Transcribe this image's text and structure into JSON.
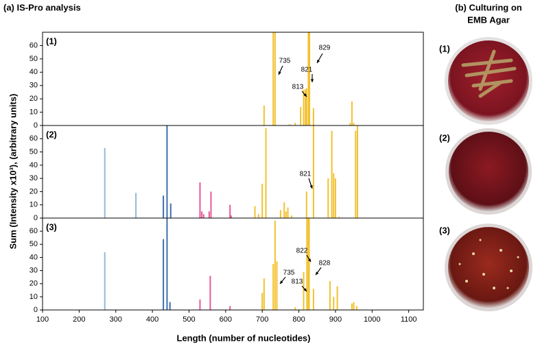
{
  "chart_data": {
    "type": "bar",
    "title": "(a) IS-Pro analysis",
    "ylabel": "Sum (Intensity x10³), (arbitrary units)",
    "xlabel": "Length (number of nucleotides)",
    "xlim": [
      100,
      1140
    ],
    "xticks": [
      100,
      200,
      300,
      400,
      500,
      600,
      700,
      800,
      900,
      1000,
      1100
    ],
    "panels": [
      {
        "label": "(1)",
        "ylim": [
          0,
          70
        ],
        "yticks": [
          0,
          10,
          20,
          30,
          40,
          50,
          60
        ],
        "x": [
          705,
          730,
          735,
          775,
          790,
          805,
          813,
          818,
          821,
          826,
          829,
          840,
          940,
          945,
          950
        ],
        "values": [
          15,
          70,
          70,
          1,
          2,
          14,
          27,
          27,
          28,
          70,
          70,
          13,
          2,
          18,
          2
        ],
        "colors": [
          "#f2c12e",
          "#f2c12e",
          "#f2c12e",
          "#f2c12e",
          "#f2c12e",
          "#f2c12e",
          "#f2c12e",
          "#f2c12e",
          "#f2c12e",
          "#f2c12e",
          "#f2c12e",
          "#f2c12e",
          "#f2c12e",
          "#f2c12e",
          "#f2c12e"
        ],
        "annotations": [
          "735",
          "813",
          "821",
          "829"
        ]
      },
      {
        "label": "(2)",
        "ylim": [
          0,
          70
        ],
        "yticks": [
          0,
          10,
          20,
          30,
          40,
          50,
          60
        ],
        "x": [
          270,
          355,
          430,
          440,
          450,
          530,
          535,
          540,
          555,
          560,
          612,
          615,
          680,
          690,
          700,
          710,
          750,
          760,
          765,
          770,
          780,
          821,
          840,
          880,
          890,
          895,
          900,
          910,
          955,
          960
        ],
        "values": [
          53,
          19,
          17,
          70,
          11,
          27,
          5,
          3,
          5,
          20,
          10,
          2,
          9,
          3,
          26,
          68,
          6,
          12,
          5,
          8,
          2,
          20,
          70,
          30,
          66,
          34,
          30,
          1,
          66,
          70
        ],
        "colors": [
          "#94b8da",
          "#94b8da",
          "#3e6eae",
          "#3e6eae",
          "#3e6eae",
          "#e8589a",
          "#e8589a",
          "#e8589a",
          "#e8589a",
          "#e8589a",
          "#e8589a",
          "#e8589a",
          "#f2c12e",
          "#f2c12e",
          "#f2c12e",
          "#f2c12e",
          "#f2c12e",
          "#f2c12e",
          "#f2c12e",
          "#f2c12e",
          "#f2c12e",
          "#f2c12e",
          "#f2c12e",
          "#f2c12e",
          "#f2c12e",
          "#f2c12e",
          "#f2c12e",
          "#f2c12e",
          "#f2c12e",
          "#f2c12e"
        ],
        "annotations": [
          "821"
        ]
      },
      {
        "label": "(3)",
        "ylim": [
          0,
          70
        ],
        "yticks": [
          0,
          10,
          20,
          30,
          40,
          50,
          60
        ],
        "x": [
          270,
          430,
          440,
          448,
          530,
          558,
          612,
          700,
          705,
          730,
          735,
          740,
          790,
          813,
          822,
          826,
          828,
          840,
          885,
          895,
          905,
          945,
          950,
          958
        ],
        "values": [
          44,
          54,
          70,
          6,
          8,
          26,
          3,
          13,
          24,
          35,
          68,
          37,
          2,
          29,
          70,
          70,
          70,
          16,
          22,
          10,
          18,
          5,
          6,
          3
        ],
        "colors": [
          "#94b8da",
          "#3e6eae",
          "#3e6eae",
          "#3e6eae",
          "#e8589a",
          "#e8589a",
          "#e8589a",
          "#f2c12e",
          "#f2c12e",
          "#f2c12e",
          "#f2c12e",
          "#f2c12e",
          "#f2c12e",
          "#f2c12e",
          "#f2c12e",
          "#f2c12e",
          "#f2c12e",
          "#f2c12e",
          "#f2c12e",
          "#f2c12e",
          "#f2c12e",
          "#f2c12e",
          "#f2c12e",
          "#f2c12e"
        ],
        "annotations": [
          "822",
          "828",
          "735",
          "813"
        ]
      }
    ]
  },
  "culture": {
    "title_lines": [
      "(b) Culturing on",
      "EMB Agar"
    ],
    "labels": [
      "(1)",
      "(2)",
      "(3)"
    ]
  }
}
